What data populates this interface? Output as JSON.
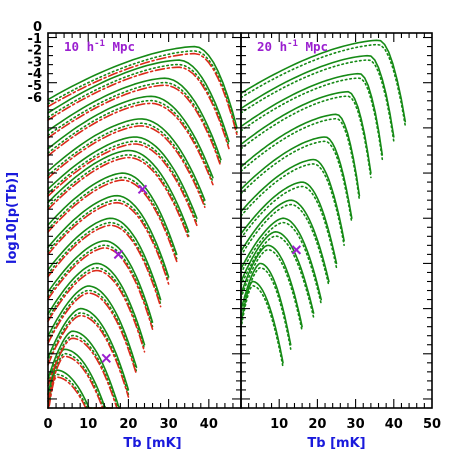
{
  "chart_data": {
    "type": "line",
    "ylabel": "log10[p(Tb)]",
    "y_ticks": [
      "0",
      "-1",
      "-2",
      "-3",
      "-4",
      "-5",
      "-6"
    ],
    "log_y": true,
    "colors": {
      "green": "#158a15",
      "red": "#dc2a1a",
      "marker": "#9b1fd0",
      "axis_title": "#1a1adc"
    },
    "panels": [
      {
        "label_main": "10 h",
        "label_sup": "-1",
        "label_rest": " Mpc",
        "xlabel": "Tb [mK]",
        "x_ticks": [
          "0",
          "10",
          "20",
          "30",
          "40"
        ],
        "xlim": [
          0,
          48
        ],
        "ylim": [
          -41,
          0.5
        ],
        "series_count": 17,
        "peaks_tb": [
          2,
          4,
          6,
          8,
          10,
          12,
          14,
          15.5,
          17,
          18.5,
          20,
          21.5,
          23,
          25.5,
          29,
          32.5,
          36.5
        ],
        "peaks_logp": [
          -36.8,
          -34.5,
          -32.5,
          -30.0,
          -27.5,
          -25.0,
          -22.5,
          -20.0,
          -17.5,
          -15.0,
          -12.5,
          -11.0,
          -9.0,
          -6.5,
          -4.5,
          -2.5,
          -1.0
        ],
        "end_tb": [
          14,
          16,
          18,
          20,
          22,
          24,
          26,
          28,
          30,
          32,
          35,
          37,
          39,
          41,
          43,
          45,
          47
        ],
        "styles": [
          "solid-green",
          "dotted-green",
          "dashed-red"
        ],
        "markers": [
          {
            "tb": 23.5,
            "logp": -16.8
          },
          {
            "tb": 17.5,
            "logp": -24.0
          },
          {
            "tb": 14.5,
            "logp": -35.5
          }
        ]
      },
      {
        "label_main": "20 h",
        "label_sup": "-1",
        "label_rest": " Mpc",
        "xlabel": "Tb [mK]",
        "x_ticks": [
          "10",
          "20",
          "30",
          "40",
          "50"
        ],
        "xlim": [
          0,
          50
        ],
        "ylim": [
          -41,
          0.5
        ],
        "series_count": 14,
        "peaks_tb": [
          3,
          5,
          7,
          9,
          11,
          13,
          16,
          19,
          22,
          25,
          28,
          31,
          33.5,
          36
        ],
        "peaks_logp": [
          -27.0,
          -25.0,
          -23.0,
          -21.5,
          -20.0,
          -18.0,
          -16.0,
          -13.5,
          -11.0,
          -8.5,
          -6.0,
          -4.0,
          -2.0,
          -0.3
        ],
        "end_tb": [
          11,
          13,
          16,
          19,
          21,
          23,
          25,
          27,
          29,
          31,
          34,
          37,
          40,
          43
        ],
        "styles": [
          "solid-green",
          "dotted-green"
        ],
        "markers": [
          {
            "tb": 14.5,
            "logp": -23.5
          }
        ]
      }
    ]
  }
}
